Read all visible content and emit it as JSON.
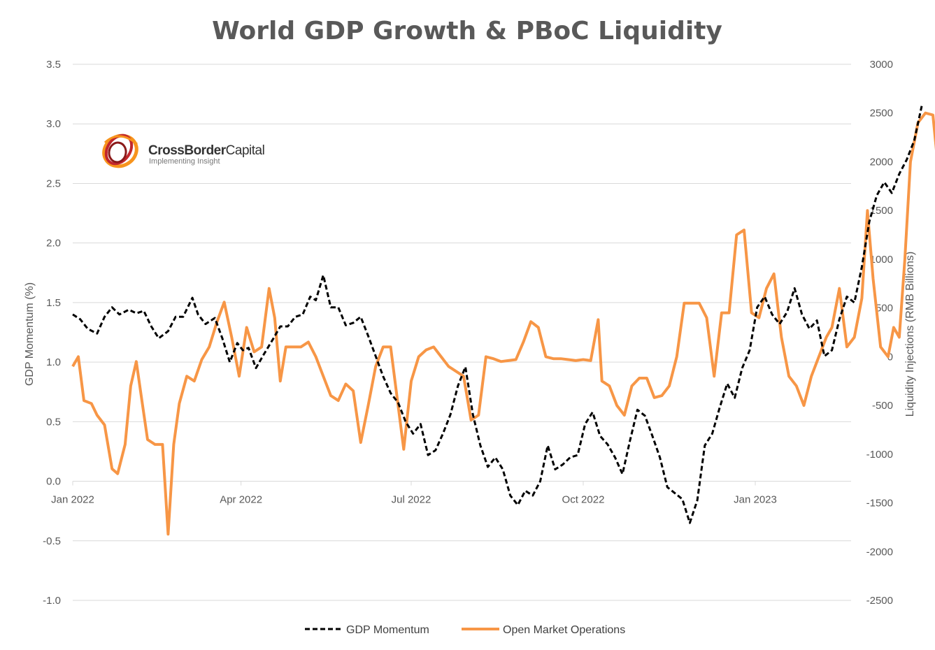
{
  "chart_data": {
    "type": "line",
    "title": "World GDP Growth & PBoC Liquidity",
    "ylabel_left": "GDP Momentum (%)",
    "ylabel_right": "Liquidity Injections (RMB Billions)",
    "ylim_left": [
      -1.0,
      3.5
    ],
    "ylim_right": [
      -2500,
      3000
    ],
    "yticks_left": [
      "3.5",
      "3.0",
      "2.5",
      "2.0",
      "1.5",
      "1.0",
      "0.5",
      "0.0",
      "-0.5",
      "-1.0"
    ],
    "yticks_right": [
      "3000",
      "2500",
      "2000",
      "1500",
      "1000",
      "500",
      "0",
      "-500",
      "-1000",
      "-1500",
      "-2000",
      "-2500"
    ],
    "xticks": [
      "Jan 2022",
      "Apr 2022",
      "Jul 2022",
      "Oct 2022",
      "Jan 2023"
    ],
    "x_range": [
      "2022-01-01",
      "2023-03-20"
    ],
    "gridlines": true,
    "legend_position": "bottom",
    "series": [
      {
        "name": "GDP Momentum",
        "axis": "left",
        "style": "dashed",
        "color": "#000000",
        "points": [
          [
            "2022-01-01",
            1.4
          ],
          [
            "2022-01-05",
            1.36
          ],
          [
            "2022-01-09",
            1.28
          ],
          [
            "2022-01-14",
            1.24
          ],
          [
            "2022-01-18",
            1.38
          ],
          [
            "2022-01-22",
            1.46
          ],
          [
            "2022-01-26",
            1.4
          ],
          [
            "2022-01-31",
            1.44
          ],
          [
            "2022-02-04",
            1.41
          ],
          [
            "2022-02-08",
            1.43
          ],
          [
            "2022-02-12",
            1.3
          ],
          [
            "2022-02-16",
            1.2
          ],
          [
            "2022-02-21",
            1.26
          ],
          [
            "2022-02-25",
            1.38
          ],
          [
            "2022-03-01",
            1.38
          ],
          [
            "2022-03-06",
            1.54
          ],
          [
            "2022-03-09",
            1.4
          ],
          [
            "2022-03-13",
            1.32
          ],
          [
            "2022-03-18",
            1.37
          ],
          [
            "2022-03-22",
            1.2
          ],
          [
            "2022-03-26",
            1.0
          ],
          [
            "2022-03-30",
            1.16
          ],
          [
            "2022-04-02",
            1.1
          ],
          [
            "2022-04-05",
            1.12
          ],
          [
            "2022-04-09",
            0.95
          ],
          [
            "2022-04-13",
            1.06
          ],
          [
            "2022-04-18",
            1.19
          ],
          [
            "2022-04-22",
            1.3
          ],
          [
            "2022-04-26",
            1.3
          ],
          [
            "2022-04-30",
            1.38
          ],
          [
            "2022-05-04",
            1.4
          ],
          [
            "2022-05-08",
            1.55
          ],
          [
            "2022-05-11",
            1.52
          ],
          [
            "2022-05-15",
            1.73
          ],
          [
            "2022-05-19",
            1.46
          ],
          [
            "2022-05-23",
            1.46
          ],
          [
            "2022-05-27",
            1.31
          ],
          [
            "2022-05-31",
            1.33
          ],
          [
            "2022-06-04",
            1.38
          ],
          [
            "2022-06-08",
            1.22
          ],
          [
            "2022-06-12",
            1.05
          ],
          [
            "2022-06-16",
            0.88
          ],
          [
            "2022-06-20",
            0.74
          ],
          [
            "2022-06-24",
            0.66
          ],
          [
            "2022-06-28",
            0.5
          ],
          [
            "2022-07-02",
            0.4
          ],
          [
            "2022-07-06",
            0.48
          ],
          [
            "2022-07-10",
            0.22
          ],
          [
            "2022-07-14",
            0.26
          ],
          [
            "2022-07-18",
            0.4
          ],
          [
            "2022-07-22",
            0.56
          ],
          [
            "2022-07-26",
            0.8
          ],
          [
            "2022-07-30",
            0.96
          ],
          [
            "2022-08-03",
            0.56
          ],
          [
            "2022-08-07",
            0.3
          ],
          [
            "2022-08-11",
            0.12
          ],
          [
            "2022-08-15",
            0.2
          ],
          [
            "2022-08-19",
            0.1
          ],
          [
            "2022-08-23",
            -0.12
          ],
          [
            "2022-08-27",
            -0.2
          ],
          [
            "2022-08-31",
            -0.08
          ],
          [
            "2022-09-04",
            -0.12
          ],
          [
            "2022-09-08",
            0.0
          ],
          [
            "2022-09-12",
            0.3
          ],
          [
            "2022-09-16",
            0.1
          ],
          [
            "2022-09-20",
            0.14
          ],
          [
            "2022-09-24",
            0.2
          ],
          [
            "2022-09-28",
            0.22
          ],
          [
            "2022-10-02",
            0.48
          ],
          [
            "2022-10-06",
            0.58
          ],
          [
            "2022-10-10",
            0.38
          ],
          [
            "2022-10-14",
            0.31
          ],
          [
            "2022-10-18",
            0.2
          ],
          [
            "2022-10-22",
            0.06
          ],
          [
            "2022-10-26",
            0.34
          ],
          [
            "2022-10-30",
            0.6
          ],
          [
            "2022-11-03",
            0.55
          ],
          [
            "2022-11-07",
            0.38
          ],
          [
            "2022-11-11",
            0.2
          ],
          [
            "2022-11-15",
            -0.05
          ],
          [
            "2022-11-19",
            -0.1
          ],
          [
            "2022-11-23",
            -0.15
          ],
          [
            "2022-11-27",
            -0.35
          ],
          [
            "2022-12-01",
            -0.16
          ],
          [
            "2022-12-05",
            0.3
          ],
          [
            "2022-12-09",
            0.4
          ],
          [
            "2022-12-13",
            0.62
          ],
          [
            "2022-12-17",
            0.82
          ],
          [
            "2022-12-21",
            0.7
          ],
          [
            "2022-12-25",
            0.95
          ],
          [
            "2022-12-29",
            1.1
          ],
          [
            "2023-01-02",
            1.46
          ],
          [
            "2023-01-06",
            1.55
          ],
          [
            "2023-01-10",
            1.4
          ],
          [
            "2023-01-14",
            1.32
          ],
          [
            "2023-01-18",
            1.42
          ],
          [
            "2023-01-22",
            1.62
          ],
          [
            "2023-01-26",
            1.4
          ],
          [
            "2023-01-30",
            1.28
          ],
          [
            "2023-02-03",
            1.35
          ],
          [
            "2023-02-07",
            1.05
          ],
          [
            "2023-02-11",
            1.1
          ],
          [
            "2023-02-15",
            1.36
          ],
          [
            "2023-02-19",
            1.55
          ],
          [
            "2023-02-23",
            1.5
          ],
          [
            "2023-02-27",
            1.8
          ],
          [
            "2023-03-03",
            2.18
          ],
          [
            "2023-03-07",
            2.4
          ],
          [
            "2023-03-11",
            2.51
          ],
          [
            "2023-03-15",
            2.42
          ],
          [
            "2023-03-19",
            2.58
          ],
          [
            "2023-03-23",
            2.7
          ],
          [
            "2023-03-27",
            2.86
          ],
          [
            "2023-03-31",
            3.15
          ]
        ]
      },
      {
        "name": "Open Market Operations",
        "axis": "right",
        "style": "solid",
        "color": "#F79646",
        "points": [
          [
            "2022-01-01",
            -100
          ],
          [
            "2022-01-04",
            0
          ],
          [
            "2022-01-07",
            -450
          ],
          [
            "2022-01-11",
            -480
          ],
          [
            "2022-01-14",
            -600
          ],
          [
            "2022-01-18",
            -700
          ],
          [
            "2022-01-22",
            -1150
          ],
          [
            "2022-01-25",
            -1200
          ],
          [
            "2022-01-29",
            -900
          ],
          [
            "2022-02-01",
            -300
          ],
          [
            "2022-02-04",
            -50
          ],
          [
            "2022-02-07",
            -450
          ],
          [
            "2022-02-10",
            -850
          ],
          [
            "2022-02-14",
            -900
          ],
          [
            "2022-02-18",
            -900
          ],
          [
            "2022-02-21",
            -1820
          ],
          [
            "2022-02-24",
            -900
          ],
          [
            "2022-02-27",
            -480
          ],
          [
            "2022-03-03",
            -200
          ],
          [
            "2022-03-07",
            -250
          ],
          [
            "2022-03-11",
            -30
          ],
          [
            "2022-03-15",
            100
          ],
          [
            "2022-03-19",
            350
          ],
          [
            "2022-03-23",
            560
          ],
          [
            "2022-03-27",
            200
          ],
          [
            "2022-03-31",
            -200
          ],
          [
            "2022-04-04",
            300
          ],
          [
            "2022-04-08",
            50
          ],
          [
            "2022-04-12",
            100
          ],
          [
            "2022-04-16",
            700
          ],
          [
            "2022-04-19",
            400
          ],
          [
            "2022-04-22",
            -250
          ],
          [
            "2022-04-25",
            100
          ],
          [
            "2022-04-29",
            100
          ],
          [
            "2022-05-03",
            100
          ],
          [
            "2022-05-07",
            150
          ],
          [
            "2022-05-11",
            0
          ],
          [
            "2022-05-15",
            -200
          ],
          [
            "2022-05-19",
            -400
          ],
          [
            "2022-05-23",
            -450
          ],
          [
            "2022-05-27",
            -280
          ],
          [
            "2022-05-31",
            -350
          ],
          [
            "2022-06-04",
            -880
          ],
          [
            "2022-06-08",
            -500
          ],
          [
            "2022-06-12",
            -100
          ],
          [
            "2022-06-16",
            100
          ],
          [
            "2022-06-20",
            100
          ],
          [
            "2022-06-23",
            -350
          ],
          [
            "2022-06-27",
            -950
          ],
          [
            "2022-07-01",
            -250
          ],
          [
            "2022-07-05",
            0
          ],
          [
            "2022-07-09",
            70
          ],
          [
            "2022-07-13",
            100
          ],
          [
            "2022-07-17",
            0
          ],
          [
            "2022-07-21",
            -100
          ],
          [
            "2022-07-25",
            -150
          ],
          [
            "2022-07-29",
            -200
          ],
          [
            "2022-08-02",
            -650
          ],
          [
            "2022-08-06",
            -600
          ],
          [
            "2022-08-10",
            0
          ],
          [
            "2022-08-14",
            -20
          ],
          [
            "2022-08-18",
            -50
          ],
          [
            "2022-08-22",
            -40
          ],
          [
            "2022-08-26",
            -30
          ],
          [
            "2022-08-30",
            150
          ],
          [
            "2022-09-03",
            360
          ],
          [
            "2022-09-07",
            300
          ],
          [
            "2022-09-11",
            0
          ],
          [
            "2022-09-15",
            -20
          ],
          [
            "2022-09-19",
            -20
          ],
          [
            "2022-09-23",
            -30
          ],
          [
            "2022-09-27",
            -40
          ],
          [
            "2022-10-01",
            -30
          ],
          [
            "2022-10-05",
            -40
          ],
          [
            "2022-10-09",
            380
          ],
          [
            "2022-10-11",
            -250
          ],
          [
            "2022-10-15",
            -300
          ],
          [
            "2022-10-19",
            -500
          ],
          [
            "2022-10-23",
            -600
          ],
          [
            "2022-10-27",
            -300
          ],
          [
            "2022-10-31",
            -220
          ],
          [
            "2022-11-04",
            -220
          ],
          [
            "2022-11-08",
            -420
          ],
          [
            "2022-11-12",
            -400
          ],
          [
            "2022-11-16",
            -300
          ],
          [
            "2022-11-20",
            0
          ],
          [
            "2022-11-24",
            550
          ],
          [
            "2022-11-28",
            550
          ],
          [
            "2022-12-02",
            550
          ],
          [
            "2022-12-06",
            400
          ],
          [
            "2022-12-10",
            -200
          ],
          [
            "2022-12-14",
            450
          ],
          [
            "2022-12-18",
            450
          ],
          [
            "2022-12-22",
            1250
          ],
          [
            "2022-12-26",
            1300
          ],
          [
            "2022-12-30",
            450
          ],
          [
            "2023-01-03",
            400
          ],
          [
            "2023-01-07",
            700
          ],
          [
            "2023-01-11",
            850
          ],
          [
            "2023-01-15",
            200
          ],
          [
            "2023-01-19",
            -200
          ],
          [
            "2023-01-23",
            -300
          ],
          [
            "2023-01-27",
            -500
          ],
          [
            "2023-01-31",
            -200
          ],
          [
            "2023-02-04",
            0
          ],
          [
            "2023-02-08",
            200
          ],
          [
            "2023-02-11",
            300
          ],
          [
            "2023-02-15",
            700
          ],
          [
            "2023-02-19",
            100
          ],
          [
            "2023-02-23",
            200
          ],
          [
            "2023-02-27",
            600
          ],
          [
            "2023-03-02",
            1500
          ],
          [
            "2023-03-05",
            800
          ],
          [
            "2023-03-09",
            100
          ],
          [
            "2023-03-13",
            0
          ],
          [
            "2023-03-16",
            300
          ],
          [
            "2023-03-19",
            200
          ],
          [
            "2023-03-22",
            1000
          ],
          [
            "2023-03-25",
            2000
          ],
          [
            "2023-03-29",
            2400
          ],
          [
            "2023-04-02",
            2500
          ],
          [
            "2023-04-06",
            2480
          ],
          [
            "2023-04-09",
            1900
          ],
          [
            "2023-04-12",
            2150
          ]
        ]
      }
    ]
  },
  "logo": {
    "name_bold": "CrossBorder",
    "name_regular": "Capital",
    "tagline": "Implementing Insight",
    "colors": [
      "#F7941D",
      "#C1272D",
      "#8B1A1A"
    ]
  },
  "colors": {
    "text": "#595959",
    "grid": "#D9D9D9"
  }
}
